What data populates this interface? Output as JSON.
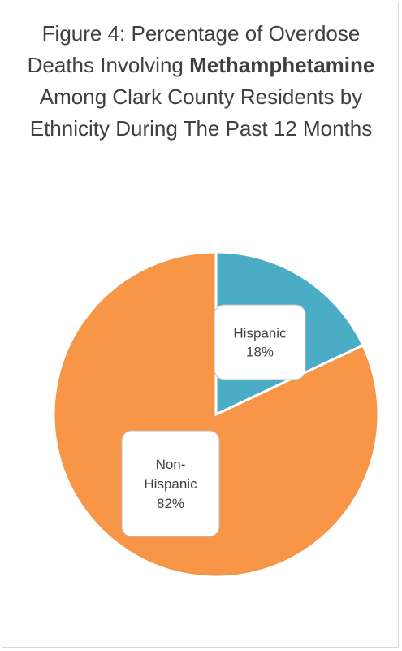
{
  "chart_data": {
    "type": "pie",
    "title_parts": {
      "before": "Figure 4: Percentage of Overdose Deaths Involving ",
      "bold": "Methamphetamine",
      "after": " Among Clark County Residents by Ethnicity During The Past 12 Months"
    },
    "slices": [
      {
        "label": "Hispanic",
        "value": 18,
        "value_label": "18%",
        "label_lines": [
          "Hispanic",
          "18%"
        ],
        "color": "#4bacc6"
      },
      {
        "label": "Non-Hispanic",
        "value": 82,
        "value_label": "82%",
        "label_lines": [
          "Non-",
          "Hispanic",
          "82%"
        ],
        "color": "#f79646"
      }
    ],
    "start_angle": "12 o'clock",
    "direction": "clockwise",
    "legend": "none"
  }
}
